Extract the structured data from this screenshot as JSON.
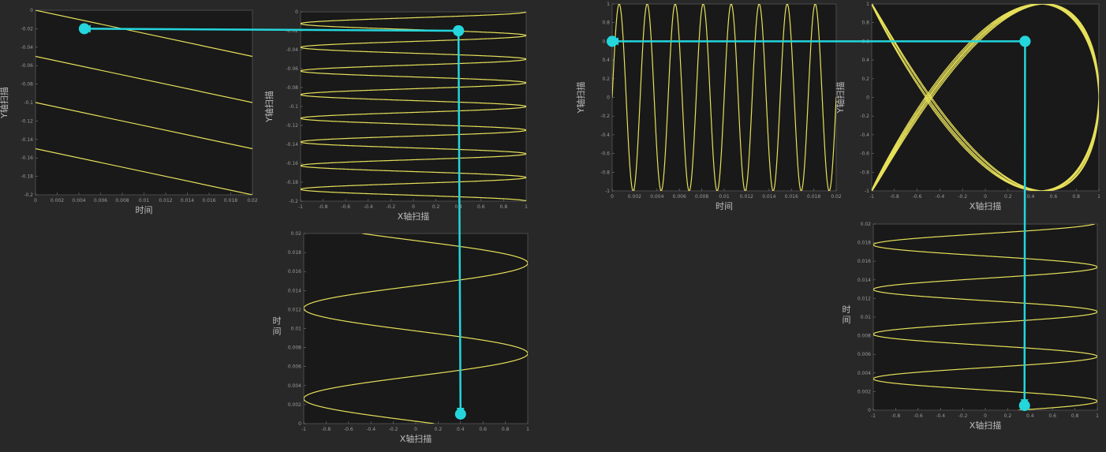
{
  "colors": {
    "background": "#282828",
    "plot_bg": "#191919",
    "trace": "#e6e05a",
    "arrow": "#24d6dc"
  },
  "labels": {
    "time": "时间",
    "time_vertical": "时\n间",
    "x_scan": "X轴扫描",
    "y_scan": "Y轴扫描"
  },
  "chart_data": [
    {
      "id": "L1",
      "type": "line",
      "description_of_trace": "Y sawtooth vs time",
      "xlabel": "时间",
      "ylabel": "Y轴扫描",
      "xlim": [
        0,
        0.02
      ],
      "ylim": [
        -0.2,
        0
      ],
      "xticks": [
        "0",
        "0.002",
        "0.004",
        "0.006",
        "0.008",
        "0.01",
        "0.012",
        "0.014",
        "0.016",
        "0.018",
        "0.02"
      ],
      "yticks": [
        "0",
        "-0.02",
        "-0.04",
        "-0.06",
        "-0.08",
        "-0.1",
        "-0.12",
        "-0.14",
        "-0.16",
        "-0.18",
        "-0.2"
      ],
      "segments": [
        {
          "x": [
            0,
            0.02
          ],
          "y": [
            0,
            -0.05
          ]
        },
        {
          "x": [
            0,
            0.02
          ],
          "y": [
            -0.05,
            -0.1
          ]
        },
        {
          "x": [
            0,
            0.02
          ],
          "y": [
            -0.1,
            -0.15
          ]
        },
        {
          "x": [
            0,
            0.02
          ],
          "y": [
            -0.15,
            -0.2
          ]
        }
      ]
    },
    {
      "id": "L2",
      "type": "line",
      "xlabel": "X轴扫描",
      "ylabel": "Y轴扫描",
      "xlim": [
        -1,
        1
      ],
      "ylim": [
        -0.2,
        0
      ],
      "xticks": [
        "-1",
        "-0.8",
        "-0.6",
        "-0.4",
        "-0.2",
        "0",
        "0.2",
        "0.4",
        "0.6",
        "0.8",
        "1"
      ],
      "yticks": [
        "0",
        "-0.02",
        "-0.04",
        "-0.06",
        "-0.08",
        "-0.1",
        "-0.12",
        "-0.14",
        "-0.16",
        "-0.18",
        "-0.2"
      ],
      "curve": {
        "x": "cos(2*pi*400*t)",
        "y": "-10*t",
        "t_range": [
          0,
          0.02
        ]
      }
    },
    {
      "id": "L3",
      "type": "line",
      "xlabel": "X轴扫描",
      "ylabel": "时\n间",
      "xlim": [
        -1,
        1
      ],
      "ylim": [
        0,
        0.02
      ],
      "xticks": [
        "-1",
        "-0.8",
        "-0.6",
        "-0.4",
        "-0.2",
        "0",
        "0.2",
        "0.4",
        "0.6",
        "0.8",
        "1"
      ],
      "yticks": [
        "0",
        "0.002",
        "0.004",
        "0.006",
        "0.008",
        "0.01",
        "0.012",
        "0.014",
        "0.016",
        "0.018",
        "0.02"
      ],
      "curve": {
        "x": "sin(2*pi*(t+0.0045)/0.0095)",
        "y": "t",
        "t_range": [
          0,
          0.02
        ]
      }
    },
    {
      "id": "R1",
      "type": "line",
      "xlabel": "时间",
      "ylabel": "Y轴扫描",
      "xlim": [
        0,
        0.02
      ],
      "ylim": [
        -1,
        1
      ],
      "xticks": [
        "0",
        "0.002",
        "0.004",
        "0.006",
        "0.008",
        "0.01",
        "0.012",
        "0.014",
        "0.016",
        "0.018",
        "0.02"
      ],
      "yticks": [
        "1",
        "0.8",
        "0.6",
        "0.4",
        "0.2",
        "0",
        "-0.2",
        "-0.4",
        "-0.6",
        "-0.8",
        "-1"
      ],
      "curve": {
        "x": "t",
        "y": "sin(2*pi*400*t)",
        "t_range": [
          0,
          0.02
        ]
      }
    },
    {
      "id": "R2",
      "type": "line",
      "xlabel": "X轴扫描",
      "ylabel": "Y轴扫描",
      "xlim": [
        -1,
        1
      ],
      "ylim": [
        -1,
        1
      ],
      "xticks": [
        "-1",
        "-0.8",
        "-0.6",
        "-0.4",
        "-0.2",
        "0",
        "0.2",
        "0.4",
        "0.6",
        "0.8",
        "1"
      ],
      "yticks": [
        "1",
        "0.8",
        "0.6",
        "0.4",
        "0.2",
        "0",
        "-0.2",
        "-0.4",
        "-0.6",
        "-0.8",
        "-1"
      ],
      "curve": {
        "x": "sin(2*pi*267*t+pi/2)",
        "y": "sin(2*pi*400*t)",
        "t_range": [
          0,
          0.02
        ]
      }
    },
    {
      "id": "R3",
      "type": "line",
      "xlabel": "X轴扫描",
      "ylabel": "时\n间",
      "xlim": [
        -1,
        1
      ],
      "ylim": [
        0,
        0.02
      ],
      "xticks": [
        "-1",
        "-0.8",
        "-0.6",
        "-0.4",
        "-0.2",
        "0",
        "0.2",
        "0.4",
        "0.6",
        "0.8",
        "1"
      ],
      "yticks": [
        "0",
        "0.002",
        "0.004",
        "0.006",
        "0.008",
        "0.01",
        "0.012",
        "0.014",
        "0.016",
        "0.018",
        "0.02"
      ],
      "curve": {
        "x": "sin(2*pi*t/0.0048 + 0.3)",
        "y": "t",
        "t_range": [
          0,
          0.02
        ]
      }
    }
  ],
  "arrows": [
    {
      "from_plot": "L2",
      "from": [
        0.4,
        -0.02
      ],
      "to_plot": "L1",
      "to": [
        0.0045,
        -0.02
      ]
    },
    {
      "from_plot": "L2",
      "from": [
        0.4,
        -0.02
      ],
      "to_plot": "L3",
      "to": [
        0.4,
        0.001
      ]
    },
    {
      "from_plot": "R2",
      "from": [
        0.35,
        0.6
      ],
      "to_plot": "R1",
      "to": [
        0.0,
        0.6
      ]
    },
    {
      "from_plot": "R2",
      "from": [
        0.35,
        0.6
      ],
      "to_plot": "R3",
      "to": [
        0.35,
        0.0005
      ]
    }
  ]
}
